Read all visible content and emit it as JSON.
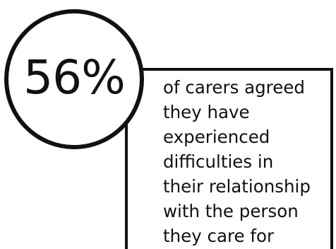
{
  "stat": {
    "value": "56%",
    "description_lines": [
      "of carers agreed",
      "they have",
      "experienced",
      "difficulties in",
      "their relationship",
      "with the person",
      "they care for"
    ]
  },
  "colors": {
    "ink": "#111111",
    "background": "#ffffff"
  }
}
